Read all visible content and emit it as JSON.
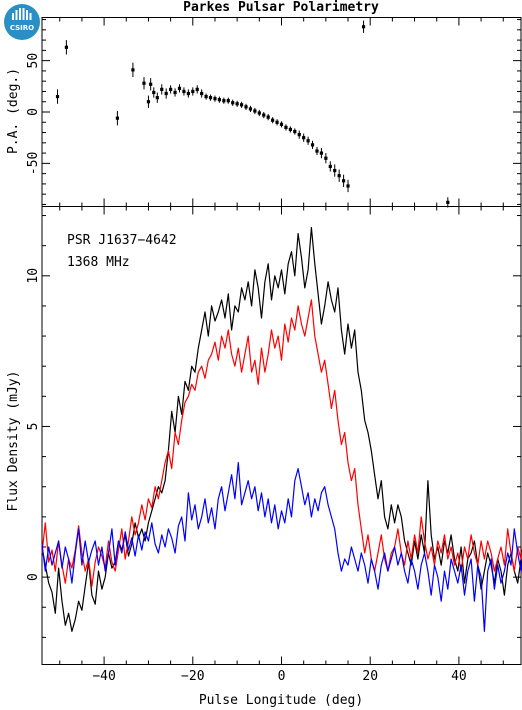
{
  "logo": {
    "text": "CSIRO",
    "bg": "#2a8fc6"
  },
  "colors": {
    "total": "#000000",
    "linear": "#ff0000",
    "circular": "#0000ff"
  },
  "chart_data": [
    {
      "type": "scatter",
      "title": "Parkes Pulsar Polarimetry",
      "xlabel": "",
      "ylabel": "P.A. (deg.)",
      "xlim": [
        -54,
        54
      ],
      "ylim": [
        -92,
        92
      ],
      "yticks": [
        -50,
        0,
        50
      ],
      "xticks": [
        -40,
        -20,
        0,
        20,
        40
      ],
      "points": [
        {
          "x": -50.5,
          "y": 15,
          "err": 7
        },
        {
          "x": -48.5,
          "y": 63,
          "err": 7
        },
        {
          "x": -37.0,
          "y": -6,
          "err": 7
        },
        {
          "x": -33.5,
          "y": 41,
          "err": 7
        },
        {
          "x": -31.0,
          "y": 28,
          "err": 6
        },
        {
          "x": -30.0,
          "y": 10,
          "err": 6
        },
        {
          "x": -29.5,
          "y": 27,
          "err": 6
        },
        {
          "x": -28.8,
          "y": 19,
          "err": 5
        },
        {
          "x": -28.0,
          "y": 14,
          "err": 5
        },
        {
          "x": -27.0,
          "y": 22,
          "err": 5
        },
        {
          "x": -26.0,
          "y": 18,
          "err": 5
        },
        {
          "x": -25.0,
          "y": 22,
          "err": 4
        },
        {
          "x": -24.0,
          "y": 19,
          "err": 4
        },
        {
          "x": -23.0,
          "y": 23,
          "err": 4
        },
        {
          "x": -22.0,
          "y": 20,
          "err": 4
        },
        {
          "x": -21.0,
          "y": 18,
          "err": 4
        },
        {
          "x": -20.0,
          "y": 20,
          "err": 4
        },
        {
          "x": -19.0,
          "y": 22,
          "err": 4
        },
        {
          "x": -18.0,
          "y": 18,
          "err": 4
        },
        {
          "x": -17.0,
          "y": 15,
          "err": 3
        },
        {
          "x": -16.0,
          "y": 14,
          "err": 3
        },
        {
          "x": -15.0,
          "y": 13,
          "err": 3
        },
        {
          "x": -14.0,
          "y": 12,
          "err": 3
        },
        {
          "x": -13.0,
          "y": 11,
          "err": 3
        },
        {
          "x": -12.0,
          "y": 11,
          "err": 3
        },
        {
          "x": -11.0,
          "y": 9,
          "err": 3
        },
        {
          "x": -10.0,
          "y": 8,
          "err": 3
        },
        {
          "x": -9.0,
          "y": 7,
          "err": 3
        },
        {
          "x": -8.0,
          "y": 5,
          "err": 3
        },
        {
          "x": -7.0,
          "y": 3,
          "err": 3
        },
        {
          "x": -6.0,
          "y": 1,
          "err": 3
        },
        {
          "x": -5.0,
          "y": -1,
          "err": 3
        },
        {
          "x": -4.0,
          "y": -3,
          "err": 3
        },
        {
          "x": -3.0,
          "y": -5,
          "err": 3
        },
        {
          "x": -2.0,
          "y": -8,
          "err": 3
        },
        {
          "x": -1.0,
          "y": -10,
          "err": 3
        },
        {
          "x": 0.0,
          "y": -12,
          "err": 3
        },
        {
          "x": 1.0,
          "y": -15,
          "err": 3
        },
        {
          "x": 2.0,
          "y": -17,
          "err": 3
        },
        {
          "x": 3.0,
          "y": -19,
          "err": 3
        },
        {
          "x": 4.0,
          "y": -22,
          "err": 4
        },
        {
          "x": 5.0,
          "y": -25,
          "err": 4
        },
        {
          "x": 6.0,
          "y": -28,
          "err": 4
        },
        {
          "x": 7.0,
          "y": -32,
          "err": 4
        },
        {
          "x": 8.0,
          "y": -38,
          "err": 4
        },
        {
          "x": 9.0,
          "y": -40,
          "err": 5
        },
        {
          "x": 10.0,
          "y": -45,
          "err": 5
        },
        {
          "x": 11.0,
          "y": -53,
          "err": 5
        },
        {
          "x": 12.0,
          "y": -57,
          "err": 6
        },
        {
          "x": 13.0,
          "y": -62,
          "err": 6
        },
        {
          "x": 14.0,
          "y": -67,
          "err": 6
        },
        {
          "x": 15.0,
          "y": -72,
          "err": 6
        },
        {
          "x": 18.5,
          "y": 83,
          "err": 6
        },
        {
          "x": 37.5,
          "y": -88,
          "err": 5
        }
      ]
    },
    {
      "type": "line",
      "xlabel": "Pulse Longitude (deg)",
      "ylabel": "Flux Density (mJy)",
      "xlim": [
        -54,
        54
      ],
      "ylim": [
        -2.9,
        12.3
      ],
      "yticks": [
        0,
        5,
        10
      ],
      "xticks": [
        -40,
        -20,
        0,
        20,
        40
      ],
      "annotations": [
        "PSR J1637−4642",
        "1368 MHz"
      ],
      "x_start": -54,
      "x_step": 0.75,
      "series": [
        {
          "key": "total",
          "values": [
            1.0,
            0.4,
            -0.2,
            -0.5,
            -1.2,
            0.3,
            -0.8,
            -1.6,
            -1.2,
            -1.8,
            -1.4,
            -0.8,
            -1.1,
            -0.3,
            0.5,
            -0.6,
            -0.9,
            0.2,
            -0.4,
            0.0,
            0.8,
            0.3,
            0.5,
            1.2,
            0.9,
            1.4,
            0.7,
            1.1,
            1.8,
            1.3,
            1.6,
            1.2,
            1.8,
            2.2,
            2.6,
            3.0,
            2.8,
            3.2,
            4.2,
            5.5,
            4.8,
            6.0,
            5.4,
            6.5,
            6.2,
            7.0,
            6.8,
            7.6,
            8.2,
            8.8,
            8.0,
            9.0,
            8.5,
            8.8,
            9.2,
            8.6,
            9.4,
            8.2,
            9.0,
            8.8,
            9.6,
            9.2,
            9.8,
            9.0,
            10.2,
            9.6,
            8.6,
            9.8,
            10.4,
            9.2,
            10.0,
            9.6,
            10.2,
            9.4,
            10.4,
            10.8,
            10.0,
            11.4,
            10.6,
            9.6,
            10.2,
            11.6,
            10.4,
            9.4,
            8.4,
            9.0,
            9.8,
            9.2,
            8.8,
            9.6,
            8.2,
            7.4,
            8.4,
            7.6,
            8.2,
            6.8,
            6.2,
            5.2,
            4.8,
            4.2,
            3.4,
            2.6,
            3.2,
            2.0,
            1.6,
            2.4,
            1.8,
            2.4,
            2.0,
            1.2,
            0.8,
            0.4,
            1.2,
            0.6,
            1.4,
            0.8,
            3.2,
            1.4,
            0.6,
            1.0,
            0.4,
            1.2,
            0.8,
            1.4,
            0.6,
            0.2,
            1.0,
            -0.2,
            0.6,
            0.8,
            1.2,
            0.4,
            -0.4,
            0.2,
            0.8,
            0.4,
            -0.2,
            0.6,
            0.2,
            -0.6,
            0.4,
            0.8,
            0.2,
            -0.2,
            0.6,
            -0.4,
            1.0
          ]
        },
        {
          "key": "linear",
          "values": [
            0.8,
            1.8,
            0.5,
            0.9,
            0.2,
            1.2,
            0.4,
            -0.2,
            0.6,
            0.3,
            0.9,
            1.7,
            0.8,
            0.2,
            0.6,
            -0.3,
            0.5,
            1.0,
            0.7,
            0.3,
            1.2,
            0.5,
            0.2,
            0.9,
            1.6,
            0.6,
            1.2,
            2.0,
            1.4,
            1.8,
            2.4,
            1.9,
            2.6,
            2.3,
            3.0,
            2.6,
            3.2,
            3.8,
            4.2,
            3.6,
            4.8,
            4.4,
            5.2,
            5.8,
            6.0,
            6.4,
            6.2,
            6.8,
            7.0,
            6.6,
            7.2,
            7.4,
            7.8,
            7.2,
            8.0,
            7.6,
            8.2,
            7.4,
            7.0,
            7.6,
            6.8,
            7.4,
            8.0,
            6.8,
            7.2,
            6.4,
            7.6,
            6.8,
            7.4,
            8.2,
            7.6,
            8.0,
            7.2,
            8.4,
            7.8,
            8.6,
            8.2,
            9.0,
            8.4,
            8.0,
            8.6,
            9.2,
            8.0,
            7.4,
            6.8,
            7.2,
            6.4,
            5.6,
            6.2,
            5.2,
            4.4,
            4.8,
            3.8,
            3.2,
            3.6,
            2.4,
            1.6,
            0.8,
            1.4,
            0.6,
            0.2,
            0.8,
            1.4,
            0.6,
            0.2,
            0.8,
            1.0,
            1.6,
            0.8,
            0.4,
            1.2,
            0.6,
            1.4,
            0.8,
            2.0,
            1.2,
            0.6,
            1.0,
            0.4,
            1.2,
            0.8,
            1.4,
            0.6,
            1.0,
            0.4,
            0.8,
            0.2,
            1.0,
            0.6,
            1.4,
            0.8,
            0.4,
            1.2,
            0.6,
            1.2,
            0.8,
            0.2,
            0.6,
            1.0,
            0.4,
            1.6,
            0.8,
            0.2,
            1.0,
            0.6,
            1.4,
            0.4
          ]
        },
        {
          "key": "circular",
          "values": [
            1.1,
            0.2,
            1.0,
            0.4,
            0.8,
            1.2,
            0.3,
            1.0,
            0.6,
            -0.2,
            0.8,
            1.6,
            0.4,
            1.2,
            0.5,
            0.9,
            1.2,
            0.4,
            1.0,
            0.2,
            0.8,
            1.6,
            0.4,
            1.2,
            0.8,
            1.5,
            0.9,
            1.3,
            0.7,
            1.4,
            0.9,
            1.5,
            1.2,
            1.8,
            1.1,
            0.8,
            1.4,
            1.0,
            1.6,
            1.3,
            0.8,
            1.7,
            2.0,
            1.2,
            2.8,
            1.9,
            2.4,
            1.6,
            2.0,
            2.6,
            1.8,
            2.3,
            1.6,
            2.6,
            3.0,
            2.2,
            2.8,
            3.4,
            2.6,
            3.8,
            2.4,
            2.8,
            3.2,
            2.6,
            3.0,
            2.2,
            2.8,
            2.0,
            2.6,
            1.8,
            2.4,
            1.6,
            2.2,
            1.8,
            2.6,
            2.0,
            3.2,
            3.6,
            3.0,
            2.4,
            2.8,
            2.0,
            2.6,
            2.2,
            2.8,
            3.0,
            2.4,
            2.0,
            1.6,
            0.8,
            0.2,
            0.6,
            0.4,
            1.0,
            0.6,
            0.2,
            0.8,
            0.4,
            -0.2,
            0.6,
            0.2,
            -0.4,
            0.4,
            0.8,
            0.2,
            0.6,
            1.0,
            0.4,
            0.8,
            0.2,
            -0.2,
            0.6,
            0.2,
            -0.4,
            0.4,
            0.8,
            0.2,
            -0.6,
            0.4,
            0.0,
            -0.8,
            0.2,
            -0.4,
            0.6,
            0.2,
            -0.2,
            0.4,
            -0.6,
            0.2,
            0.6,
            -0.8,
            0.4,
            0.0,
            -1.8,
            0.2,
            0.6,
            -0.4,
            0.4,
            -0.2,
            0.2,
            0.8,
            0.4,
            1.6,
            0.8,
            0.2,
            1.2,
            0.6,
            -0.4,
            0.6
          ]
        }
      ]
    }
  ]
}
